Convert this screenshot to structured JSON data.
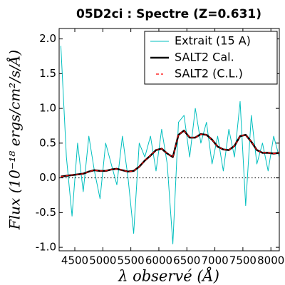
{
  "chart_data": {
    "type": "line",
    "title": "05D2ci : Spectre (Z=0.631)",
    "x_label": "λ observé (Å)",
    "y_label": "Flux (10⁻¹⁸ ergs/cm²/s/Å)",
    "x": [
      4250,
      4350,
      4450,
      4550,
      4650,
      4750,
      4850,
      4950,
      5050,
      5150,
      5250,
      5350,
      5450,
      5550,
      5650,
      5750,
      5850,
      5950,
      6050,
      6150,
      6250,
      6350,
      6450,
      6550,
      6650,
      6750,
      6850,
      6950,
      7050,
      7150,
      7250,
      7350,
      7450,
      7550,
      7650,
      7750,
      7850,
      7950,
      8050,
      8150
    ],
    "series": [
      {
        "name": "Extrait (15 A)",
        "color": "#00bfbf",
        "style": "solid",
        "values": [
          1.9,
          0.3,
          -0.55,
          0.5,
          -0.2,
          0.6,
          0.1,
          -0.3,
          0.5,
          0.2,
          -0.1,
          0.6,
          0.0,
          -0.8,
          0.5,
          0.3,
          0.6,
          0.1,
          0.7,
          0.2,
          -0.95,
          0.8,
          0.9,
          0.3,
          1.0,
          0.5,
          0.8,
          0.2,
          0.6,
          0.1,
          0.7,
          0.3,
          1.1,
          -0.4,
          0.9,
          0.2,
          0.5,
          0.1,
          0.6,
          0.3
        ]
      },
      {
        "name": "SALT2 Cal.",
        "color": "#000000",
        "style": "thick",
        "values": [
          0.02,
          0.03,
          0.04,
          0.05,
          0.06,
          0.09,
          0.11,
          0.1,
          0.1,
          0.12,
          0.13,
          0.11,
          0.09,
          0.1,
          0.16,
          0.25,
          0.32,
          0.4,
          0.42,
          0.35,
          0.3,
          0.62,
          0.68,
          0.58,
          0.58,
          0.63,
          0.62,
          0.55,
          0.45,
          0.41,
          0.4,
          0.46,
          0.6,
          0.62,
          0.52,
          0.4,
          0.36,
          0.36,
          0.35,
          0.36
        ]
      },
      {
        "name": "SALT2 (C.L.)",
        "color": "#ff0000",
        "style": "dashed",
        "values": [
          0.02,
          0.03,
          0.04,
          0.05,
          0.06,
          0.09,
          0.11,
          0.1,
          0.1,
          0.12,
          0.13,
          0.11,
          0.09,
          0.1,
          0.16,
          0.25,
          0.32,
          0.4,
          0.42,
          0.35,
          0.3,
          0.62,
          0.68,
          0.58,
          0.58,
          0.63,
          0.62,
          0.55,
          0.45,
          0.41,
          0.4,
          0.46,
          0.6,
          0.62,
          0.52,
          0.4,
          0.36,
          0.36,
          0.35,
          0.36
        ]
      }
    ],
    "xlim": [
      4220,
      8150
    ],
    "xticks": [
      4500,
      5000,
      5500,
      6000,
      6500,
      7000,
      7500,
      8000
    ],
    "ylim": [
      -1.05,
      2.15
    ],
    "yticks": [
      {
        "value": -1,
        "label": "-1.0"
      },
      -0.5,
      {
        "value": 0,
        "label": "0.0"
      },
      0.5,
      {
        "value": 1,
        "label": "1.0"
      },
      1.5,
      {
        "value": 2,
        "label": "2.0"
      }
    ],
    "legend": "upper right"
  }
}
